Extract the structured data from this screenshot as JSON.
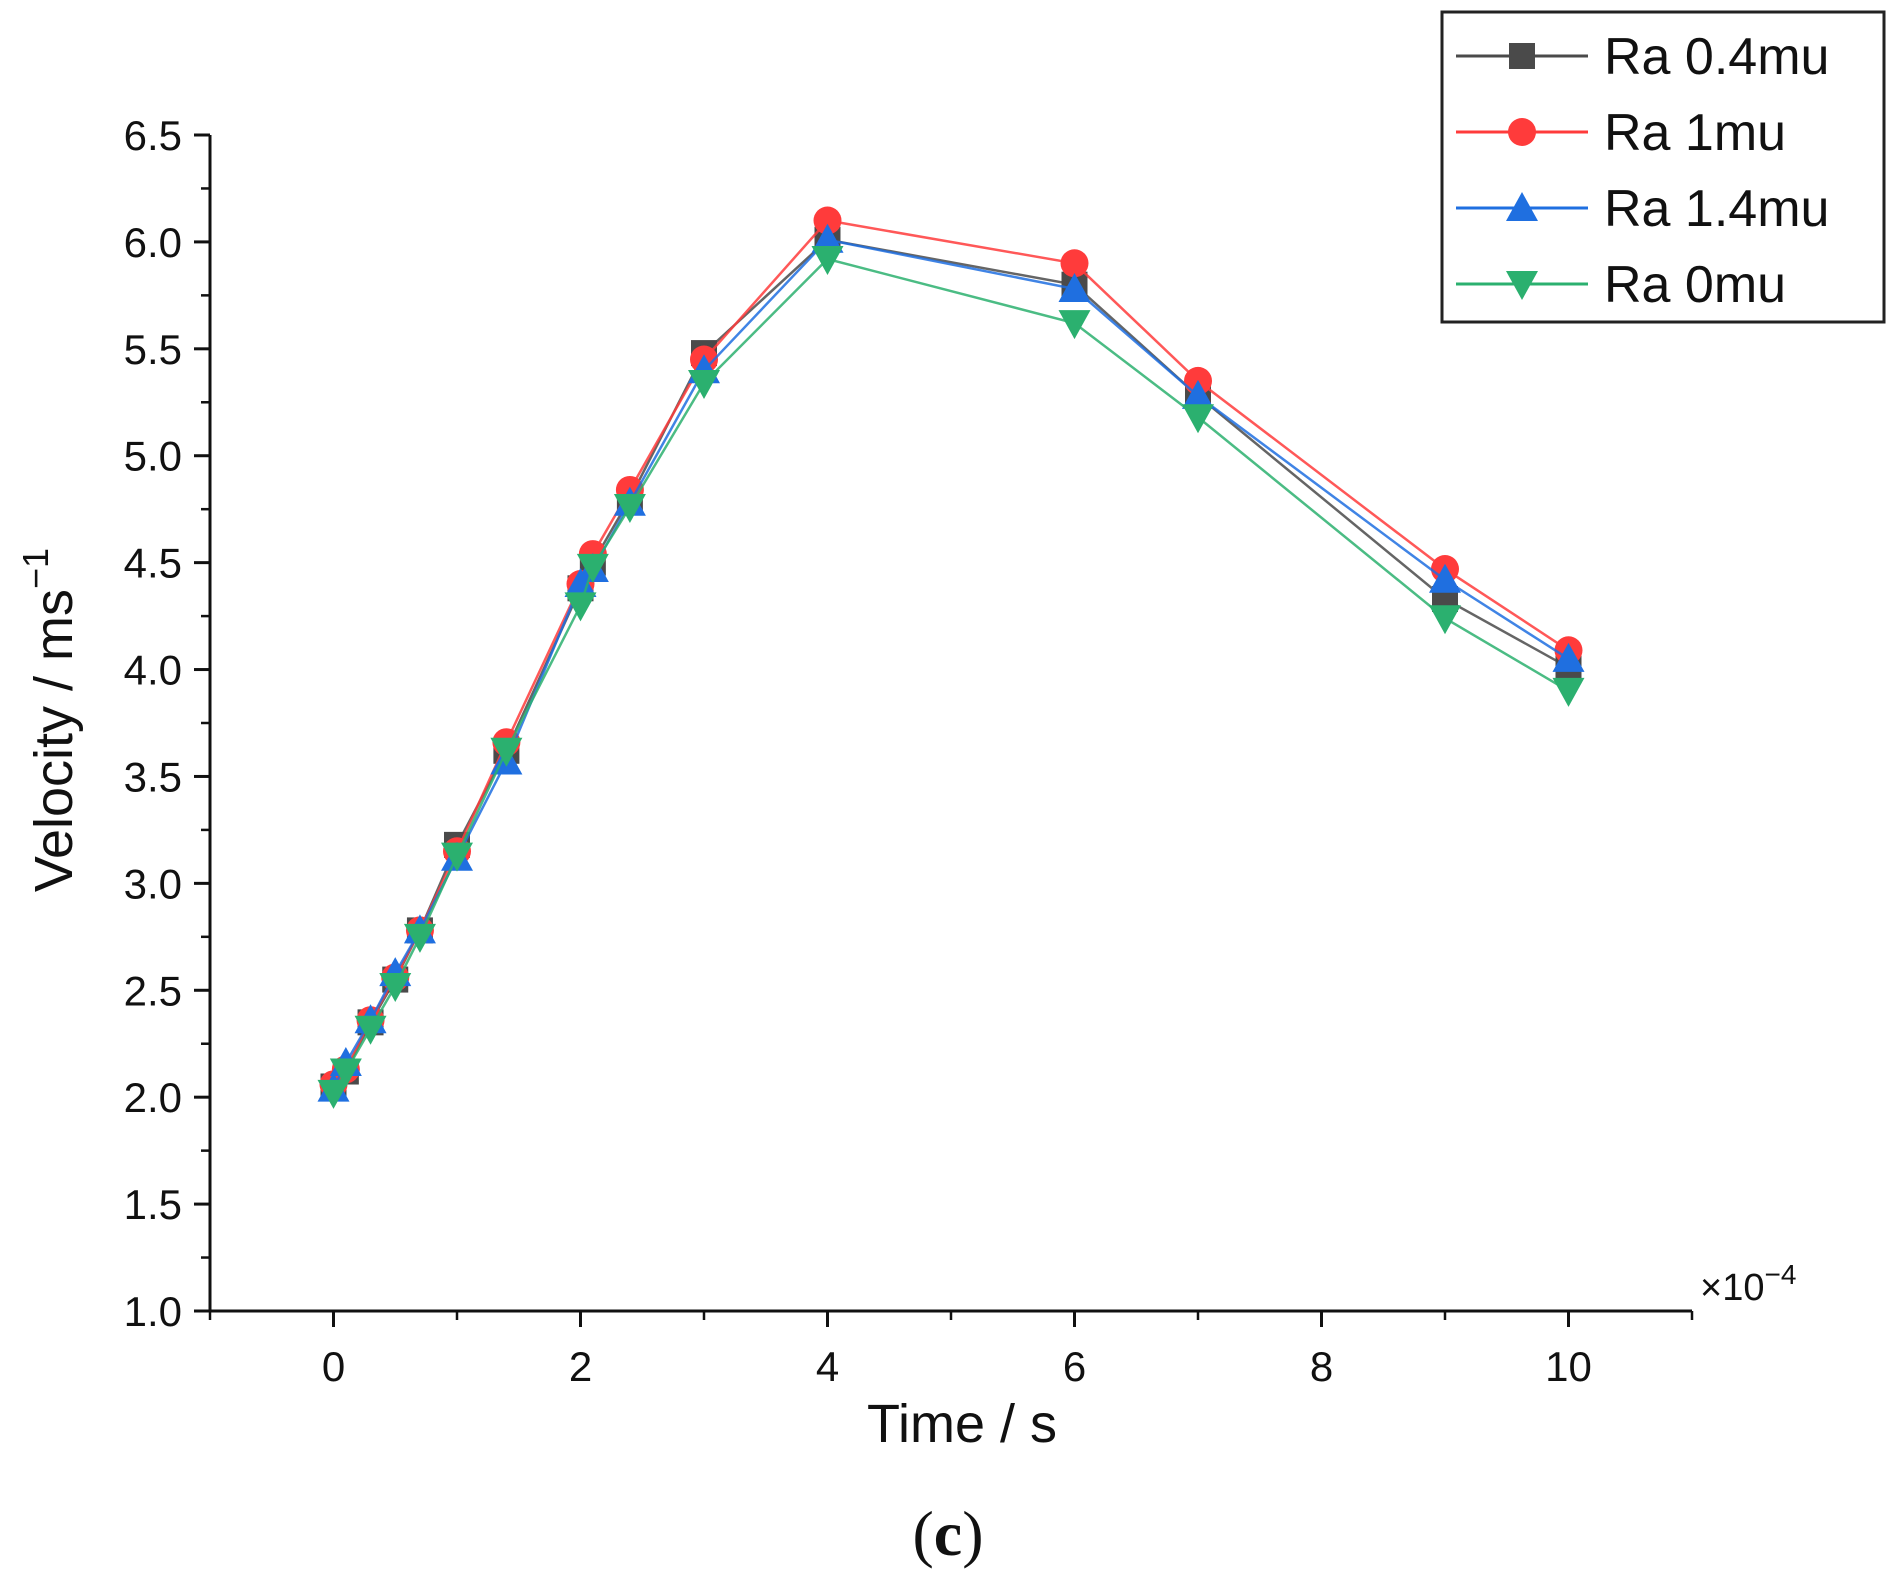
{
  "chart_data": {
    "type": "line",
    "xlabel": "Time / s",
    "ylabel_main": "Velocity / ms",
    "ylabel_sup": "−1",
    "x_multiplier": "×10",
    "x_multiplier_exp": "−4",
    "panel_label_open": "(",
    "panel_label_letter": "c",
    "panel_label_close": ")",
    "xlim": [
      -1,
      11
    ],
    "ylim": [
      1.0,
      6.5
    ],
    "xticks": [
      0,
      2,
      4,
      6,
      8,
      10
    ],
    "xtick_labels": [
      "0",
      "2",
      "4",
      "6",
      "8",
      "10"
    ],
    "yticks": [
      1.0,
      1.5,
      2.0,
      2.5,
      3.0,
      3.5,
      4.0,
      4.5,
      5.0,
      5.5,
      6.0,
      6.5
    ],
    "ytick_labels": [
      "1.0",
      "1.5",
      "2.0",
      "2.5",
      "3.0",
      "3.5",
      "4.0",
      "4.5",
      "5.0",
      "5.5",
      "6.0",
      "6.5"
    ],
    "legend_position": "top-right",
    "series": [
      {
        "name": "Ra 0.4mu",
        "color": "#4a4a4a",
        "marker": "square",
        "x": [
          0,
          0.1,
          0.3,
          0.5,
          0.7,
          1.0,
          1.4,
          2.0,
          2.1,
          2.4,
          3.0,
          4.0,
          6.0,
          7.0,
          9.0,
          10.0
        ],
        "y": [
          2.05,
          2.12,
          2.35,
          2.55,
          2.78,
          3.18,
          3.62,
          4.38,
          4.5,
          4.8,
          5.48,
          6.01,
          5.8,
          5.28,
          4.33,
          4.01
        ]
      },
      {
        "name": "Ra 1mu",
        "color": "#ff3b3b",
        "marker": "circle",
        "x": [
          0,
          0.1,
          0.3,
          0.5,
          0.7,
          1.0,
          1.4,
          2.0,
          2.1,
          2.4,
          3.0,
          4.0,
          6.0,
          7.0,
          9.0,
          10.0
        ],
        "y": [
          2.06,
          2.13,
          2.36,
          2.56,
          2.78,
          3.15,
          3.66,
          4.4,
          4.54,
          4.84,
          5.45,
          6.1,
          5.9,
          5.35,
          4.47,
          4.09
        ]
      },
      {
        "name": "Ra 1.4mu",
        "color": "#1f6fe0",
        "marker": "triangle-up",
        "x": [
          0,
          0.1,
          0.3,
          0.5,
          0.7,
          1.0,
          1.4,
          2.0,
          2.1,
          2.4,
          3.0,
          4.0,
          6.0,
          7.0,
          9.0,
          10.0
        ],
        "y": [
          2.04,
          2.16,
          2.36,
          2.58,
          2.78,
          3.12,
          3.57,
          4.4,
          4.47,
          4.78,
          5.4,
          6.01,
          5.78,
          5.28,
          4.42,
          4.05
        ]
      },
      {
        "name": "Ra 0mu",
        "color": "#2bb06f",
        "marker": "triangle-down",
        "x": [
          0,
          0.1,
          0.3,
          0.5,
          0.7,
          1.0,
          1.4,
          2.0,
          2.1,
          2.4,
          3.0,
          4.0,
          6.0,
          7.0,
          9.0,
          10.0
        ],
        "y": [
          2.02,
          2.12,
          2.32,
          2.52,
          2.75,
          3.13,
          3.62,
          4.3,
          4.48,
          4.76,
          5.34,
          5.92,
          5.62,
          5.18,
          4.24,
          3.9
        ]
      }
    ]
  }
}
